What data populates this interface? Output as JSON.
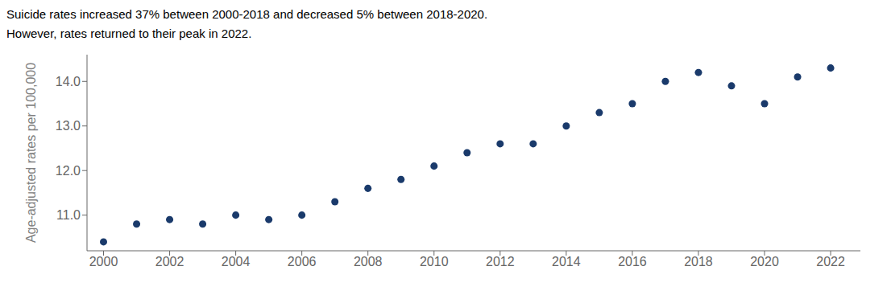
{
  "chart_data": {
    "type": "scatter",
    "title": "Suicide rates increased 37% between 2000-2018 and decreased 5% between 2018-2020.",
    "subtitle": "However, rates returned to their peak in 2022.",
    "y_label": "Age-adjusted rates per 100,000",
    "x": [
      2000,
      2001,
      2002,
      2003,
      2004,
      2005,
      2006,
      2007,
      2008,
      2009,
      2010,
      2011,
      2012,
      2013,
      2014,
      2015,
      2016,
      2017,
      2018,
      2019,
      2020,
      2021,
      2022
    ],
    "values": [
      10.4,
      10.8,
      10.9,
      10.8,
      11.0,
      10.9,
      11.0,
      11.3,
      11.6,
      11.8,
      12.1,
      12.4,
      12.6,
      12.6,
      13.0,
      13.3,
      13.5,
      14.0,
      14.2,
      13.9,
      13.5,
      14.1,
      14.3
    ],
    "color": "#1a3a6b",
    "xlim": [
      1999.5,
      2022.9
    ],
    "xticks": [
      2000,
      2002,
      2004,
      2006,
      2008,
      2010,
      2012,
      2014,
      2016,
      2018,
      2020,
      2022
    ],
    "ylim": [
      10.2,
      14.6
    ],
    "yticks": [
      {
        "value": 11.0,
        "label": "11.0"
      },
      {
        "value": 12.0,
        "label": "12.0"
      },
      {
        "value": 13.0,
        "label": "13.0"
      },
      {
        "value": 14.0,
        "label": "14.0"
      }
    ],
    "grid": false
  }
}
